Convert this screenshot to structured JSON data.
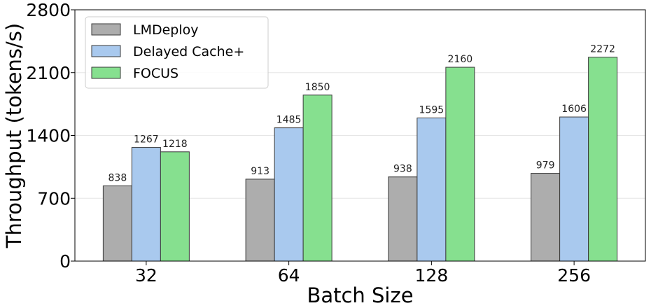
{
  "chart_data": {
    "type": "bar",
    "xlabel": "Batch Size",
    "ylabel": "Throughput (tokens/s)",
    "categories": [
      "32",
      "64",
      "128",
      "256"
    ],
    "ylim": [
      0,
      2800
    ],
    "yticks": [
      0,
      700,
      1400,
      2100,
      2800
    ],
    "grid": "horizontal",
    "legend_position": "top-left",
    "series": [
      {
        "name": "LMDeploy",
        "color": "#adadad",
        "values": [
          838,
          913,
          938,
          979
        ]
      },
      {
        "name": "Delayed Cache+",
        "color": "#a9c9ee",
        "values": [
          1267,
          1485,
          1595,
          1606
        ]
      },
      {
        "name": "FOCUS",
        "color": "#86e08f",
        "values": [
          1218,
          1850,
          2160,
          2272
        ]
      }
    ]
  }
}
